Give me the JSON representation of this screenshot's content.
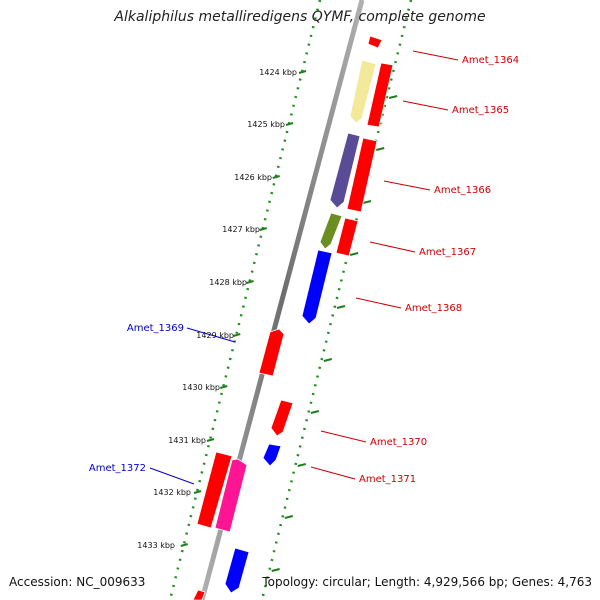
{
  "title": "Alkaliphilus metalliredigens QYMF, complete genome",
  "accession": "Accession: NC_009633",
  "summary": "Topology: circular; Length: 4,929,566 bp; Genes: 4,763",
  "colors": {
    "backbone": "#8a8a8a",
    "ticks_dotted": "#1f8f1f",
    "forward_label": "#cc0000",
    "reverse_label": "#0000cc"
  },
  "kbp_labels": [
    "1424 kbp",
    "1425 kbp",
    "1426 kbp",
    "1427 kbp",
    "1428 kbp",
    "1429 kbp",
    "1430 kbp",
    "1431 kbp",
    "1432 kbp",
    "1433 kbp"
  ],
  "gene_labels": [
    {
      "text": "Amet_1364",
      "strand": "forward"
    },
    {
      "text": "Amet_1365",
      "strand": "forward"
    },
    {
      "text": "Amet_1366",
      "strand": "forward"
    },
    {
      "text": "Amet_1367",
      "strand": "forward"
    },
    {
      "text": "Amet_1368",
      "strand": "forward"
    },
    {
      "text": "Amet_1369",
      "strand": "reverse"
    },
    {
      "text": "Amet_1370",
      "strand": "forward"
    },
    {
      "text": "Amet_1371",
      "strand": "forward"
    },
    {
      "text": "Amet_1372",
      "strand": "reverse"
    }
  ],
  "features": [
    {
      "strand": "forward",
      "ring": "inner",
      "color": "#ff0000"
    },
    {
      "strand": "forward",
      "ring": "outer",
      "color": "#f3e99a"
    },
    {
      "strand": "forward",
      "ring": "inner",
      "color": "#ff0000"
    },
    {
      "strand": "forward",
      "ring": "outer",
      "color": "#5a4b96"
    },
    {
      "strand": "forward",
      "ring": "inner",
      "color": "#ff0000"
    },
    {
      "strand": "forward",
      "ring": "outer",
      "color": "#6b8e23"
    },
    {
      "strand": "forward",
      "ring": "inner",
      "color": "#ff0000"
    },
    {
      "strand": "reverse",
      "ring": "inner",
      "color": "#0000ff"
    },
    {
      "strand": "forward",
      "ring": "inner",
      "color": "#ff0000"
    },
    {
      "strand": "forward",
      "ring": "inner",
      "color": "#ff0000"
    },
    {
      "strand": "reverse",
      "ring": "inner",
      "color": "#0000ff"
    },
    {
      "strand": "reverse",
      "ring": "outer",
      "color": "#ff1493"
    },
    {
      "strand": "forward",
      "ring": "inner",
      "color": "#ff0000"
    },
    {
      "strand": "reverse",
      "ring": "inner",
      "color": "#0000ff"
    },
    {
      "strand": "forward",
      "ring": "inner",
      "color": "#ff0000"
    }
  ]
}
